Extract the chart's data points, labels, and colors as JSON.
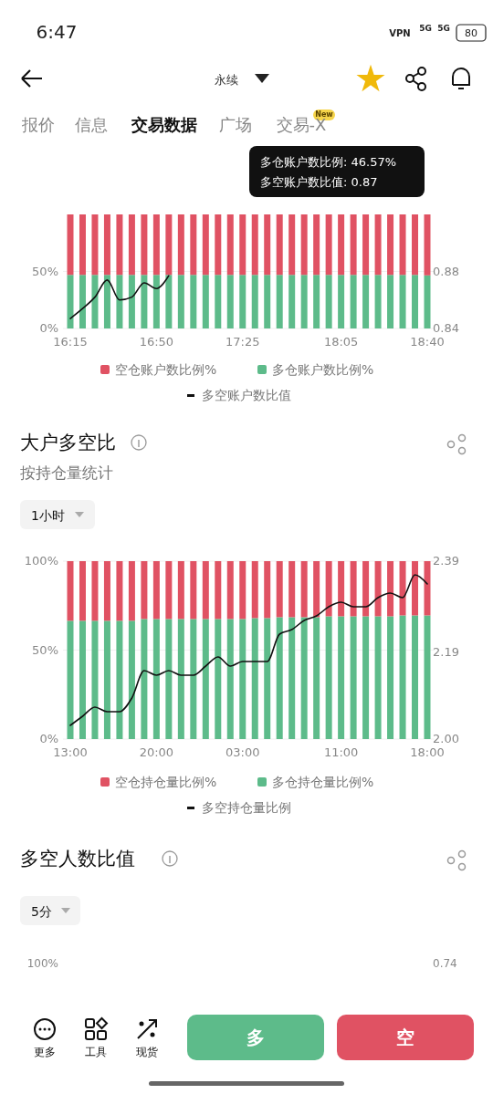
{
  "chart_data": [
    {
      "type": "bar",
      "stacked": true,
      "grid": "y",
      "legend": "bottom",
      "categories": [
        "16:15",
        null,
        null,
        null,
        null,
        null,
        null,
        "16:50",
        null,
        null,
        null,
        null,
        null,
        null,
        "17:25",
        null,
        null,
        null,
        null,
        null,
        null,
        null,
        "18:05",
        null,
        null,
        null,
        null,
        null,
        null,
        "18:40"
      ],
      "series": [
        {
          "name": "多仓账户数比例%",
          "color": "#5dbb8a",
          "values": [
            47,
            47,
            47,
            47,
            47,
            47,
            47,
            47,
            47,
            47,
            47,
            47,
            47,
            47,
            47,
            47,
            47,
            47,
            47,
            47,
            47,
            47,
            47,
            47,
            47,
            47,
            47,
            47,
            47,
            46.57
          ]
        },
        {
          "name": "空仓账户数比例%",
          "color": "#e05263",
          "values": [
            53,
            53,
            53,
            53,
            53,
            53,
            53,
            53,
            53,
            53,
            53,
            53,
            53,
            53,
            53,
            53,
            53,
            53,
            53,
            53,
            53,
            53,
            53,
            53,
            53,
            53,
            53,
            53,
            53,
            53.43
          ]
        },
        {
          "name": "多空账户数比值",
          "type": "line",
          "axis": "y2",
          "color": "#111111",
          "values": [
            0.847,
            0.854,
            0.862,
            0.874,
            0.86,
            0.862,
            0.872,
            0.868,
            0.877,
            null,
            null,
            null,
            null,
            null,
            null,
            null,
            null,
            null,
            null,
            null,
            null,
            null,
            null,
            null,
            null,
            null,
            null,
            null,
            null,
            null
          ]
        }
      ],
      "ylim": [
        0,
        100
      ],
      "yticks": [
        {
          "value": 0,
          "label": "0%"
        },
        {
          "value": 50,
          "label": "50%"
        }
      ],
      "y2lim": [
        0.84,
        0.92
      ],
      "y2ticks": [
        0.84,
        0.88
      ],
      "annotations": [
        "6:47",
        "VPN",
        "5G",
        "5G",
        "80",
        "永续",
        "报价",
        "信息",
        "交易数据",
        "广场",
        "交易-X",
        "New",
        "多仓账户数比例: 46.57%",
        "多空账户数比值: 0.87"
      ]
    },
    {
      "type": "bar",
      "stacked": true,
      "grid": "y",
      "legend": "bottom",
      "title": "大户多空比",
      "subtitle": "按持仓量统计",
      "categories": [
        "13:00",
        null,
        null,
        null,
        null,
        null,
        null,
        "20:00",
        null,
        null,
        null,
        null,
        null,
        null,
        "03:00",
        null,
        null,
        null,
        null,
        null,
        null,
        null,
        "11:00",
        null,
        null,
        null,
        null,
        null,
        null,
        "18:00"
      ],
      "series": [
        {
          "name": "多仓持仓量比例%",
          "color": "#5dbb8a",
          "values": [
            66.5,
            66.5,
            66.5,
            66.5,
            66.5,
            66.5,
            67.5,
            67.5,
            67.5,
            67.5,
            67.5,
            67.5,
            67.5,
            67.5,
            67.5,
            68,
            68,
            68.5,
            68.5,
            68.5,
            68.5,
            69,
            69,
            69,
            69,
            69,
            69,
            69.5,
            69.5,
            69.5
          ]
        },
        {
          "name": "空仓持仓量比例%",
          "color": "#e05263",
          "values": [
            33.5,
            33.5,
            33.5,
            33.5,
            33.5,
            33.5,
            32.5,
            32.5,
            32.5,
            32.5,
            32.5,
            32.5,
            32.5,
            32.5,
            32.5,
            32,
            32,
            31.5,
            31.5,
            31.5,
            31.5,
            31,
            31,
            31,
            31,
            31,
            31,
            30.5,
            30.5,
            30.5
          ]
        },
        {
          "name": "多空持仓量比例",
          "type": "line",
          "axis": "y2",
          "color": "#111111",
          "values": [
            2.03,
            2.05,
            2.07,
            2.06,
            2.06,
            2.09,
            2.15,
            2.14,
            2.15,
            2.14,
            2.14,
            2.16,
            2.18,
            2.16,
            2.17,
            2.17,
            2.17,
            2.23,
            2.24,
            2.26,
            2.27,
            2.29,
            2.3,
            2.29,
            2.29,
            2.31,
            2.32,
            2.31,
            2.36,
            2.34
          ]
        }
      ],
      "ylim": [
        0,
        100
      ],
      "yticks": [
        {
          "value": 0,
          "label": "0%"
        },
        {
          "value": 50,
          "label": "50%"
        },
        {
          "value": 100,
          "label": "100%"
        }
      ],
      "y2lim": [
        2.0,
        2.39
      ],
      "y2ticks": [
        {
          "value": 2.0,
          "label": "2.00"
        },
        2.19,
        2.39
      ],
      "annotations": [
        "1小时"
      ]
    },
    {
      "type": "other",
      "title": "多空人数比值",
      "annotations": [
        "5分",
        "100%",
        "0.74",
        "更多",
        "工具",
        "现货",
        "多",
        "空"
      ]
    }
  ]
}
